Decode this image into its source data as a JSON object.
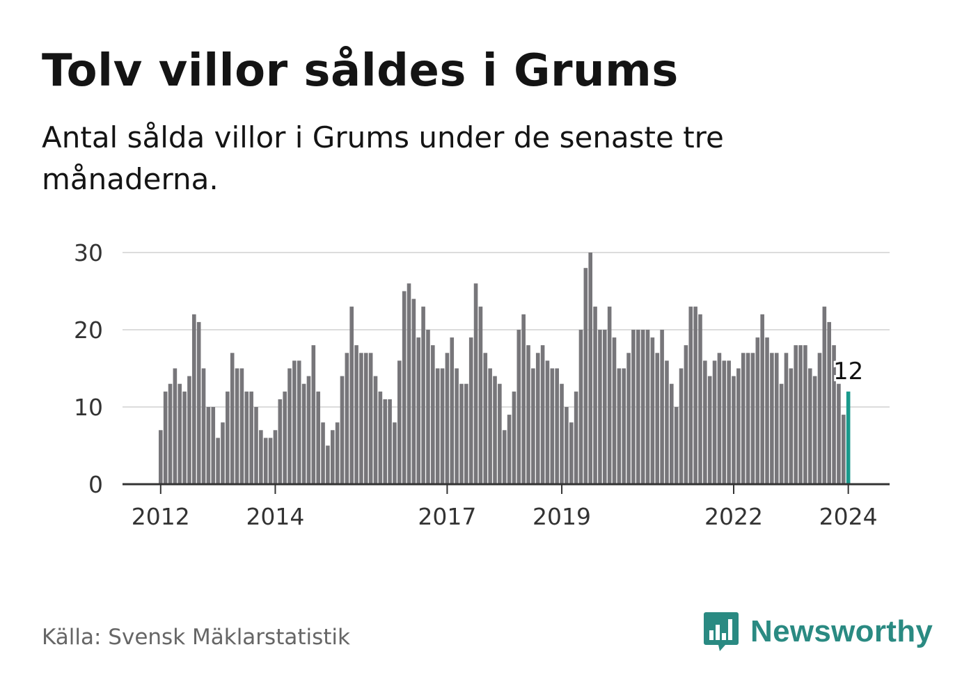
{
  "title": "Tolv villor såldes i Grums",
  "subtitle": "Antal sålda villor i Grums under de senaste tre månaderna.",
  "source": "Källa: Svensk Mäklarstatistik",
  "brand": {
    "name": "Newsworthy",
    "icon": "bar-chart-speech-bubble-icon"
  },
  "colors": {
    "bar": "#77767a",
    "highlight": "#1a9a8c",
    "grid": "#dcdcdc",
    "axis": "#333333",
    "brand": "#2a8a82"
  },
  "chart_data": {
    "type": "bar",
    "title": "",
    "xlabel": "",
    "ylabel": "",
    "ylim": [
      0,
      30
    ],
    "yticks": [
      0,
      10,
      20,
      30
    ],
    "ytick_labels": [
      "0",
      "10",
      "20",
      "30"
    ],
    "xtick_labels": [
      {
        "label": "2012",
        "index": 0
      },
      {
        "label": "2014",
        "index": 24
      },
      {
        "label": "2017",
        "index": 60
      },
      {
        "label": "2019",
        "index": 84
      },
      {
        "label": "2022",
        "index": 120
      },
      {
        "label": "2024",
        "index": 144
      }
    ],
    "start": "2012-01",
    "values": [
      7,
      12,
      13,
      15,
      13,
      12,
      14,
      22,
      21,
      15,
      10,
      10,
      6,
      8,
      12,
      17,
      15,
      15,
      12,
      12,
      10,
      7,
      6,
      6,
      7,
      11,
      12,
      15,
      16,
      16,
      13,
      14,
      18,
      12,
      8,
      5,
      7,
      8,
      14,
      17,
      23,
      18,
      17,
      17,
      17,
      14,
      12,
      11,
      11,
      8,
      16,
      25,
      26,
      24,
      19,
      23,
      20,
      18,
      15,
      15,
      17,
      19,
      15,
      13,
      13,
      19,
      26,
      23,
      17,
      15,
      14,
      13,
      7,
      9,
      12,
      20,
      22,
      18,
      15,
      17,
      18,
      16,
      15,
      15,
      13,
      10,
      8,
      12,
      20,
      28,
      30,
      23,
      20,
      20,
      23,
      19,
      15,
      15,
      17,
      20,
      20,
      20,
      20,
      19,
      17,
      20,
      16,
      13,
      10,
      15,
      18,
      23,
      23,
      22,
      16,
      14,
      16,
      17,
      16,
      16,
      14,
      15,
      17,
      17,
      17,
      19,
      22,
      19,
      17,
      17,
      13,
      17,
      15,
      18,
      18,
      18,
      15,
      14,
      17,
      23,
      21,
      18,
      13,
      9,
      12
    ],
    "highlight_index": 144,
    "highlight_label": "12"
  }
}
